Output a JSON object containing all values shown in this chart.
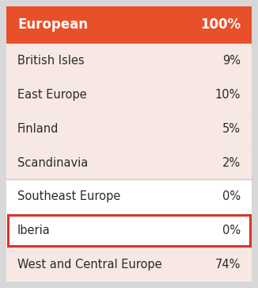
{
  "header_label": "European",
  "header_value": "100%",
  "header_bg": "#E8502A",
  "header_text_color": "#ffffff",
  "outer_border_color": "#cccccc",
  "outer_bg": "#e0e0e0",
  "rows": [
    {
      "label": "British Isles",
      "value": "9%",
      "bg": "#F8E8E4",
      "highlighted": false
    },
    {
      "label": "East Europe",
      "value": "10%",
      "bg": "#F8E8E4",
      "highlighted": false
    },
    {
      "label": "Finland",
      "value": "5%",
      "bg": "#F8E8E4",
      "highlighted": false
    },
    {
      "label": "Scandinavia",
      "value": "2%",
      "bg": "#F8E8E4",
      "highlighted": false
    },
    {
      "label": "Southeast Europe",
      "value": "0%",
      "bg": "#ffffff",
      "highlighted": false
    },
    {
      "label": "Iberia",
      "value": "0%",
      "bg": "#ffffff",
      "highlighted": true
    },
    {
      "label": "West and Central Europe",
      "value": "74%",
      "bg": "#F8E8E4",
      "highlighted": false
    }
  ],
  "highlight_border_color": "#D9342B",
  "row_text_color": "#2a2a2a",
  "row_label_fontsize": 10.5,
  "header_fontsize": 12,
  "value_fontsize": 10.5,
  "figure_bg": "#d8d8d8"
}
